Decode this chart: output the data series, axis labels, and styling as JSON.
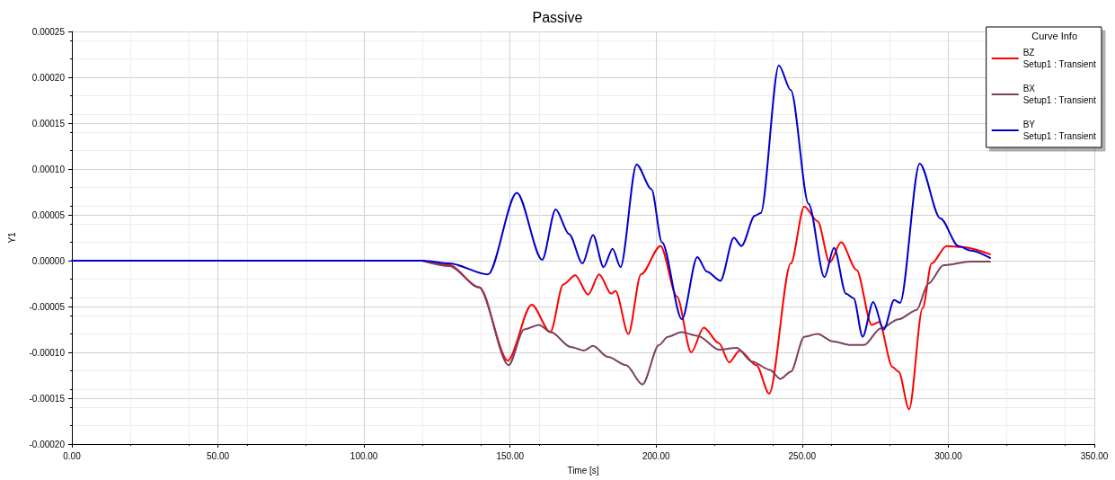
{
  "chart_data": {
    "type": "line",
    "title": "Passive",
    "xlabel": "Time [s]",
    "ylabel": "Y1",
    "legend_title": "Curve Info",
    "legend": "top right",
    "grid": true,
    "marker": "none",
    "line_style": "solid",
    "xlim": [
      0,
      350
    ],
    "xticks": [
      {
        "value": 0,
        "label": "0.00"
      },
      {
        "value": 50,
        "label": "50.00"
      },
      {
        "value": 100,
        "label": "100.00"
      },
      {
        "value": 150,
        "label": "150.00"
      },
      {
        "value": 200,
        "label": "200.00"
      },
      {
        "value": 250,
        "label": "250.00"
      },
      {
        "value": 300,
        "label": "300.00"
      },
      {
        "value": 350,
        "label": "350.00"
      }
    ],
    "ylim": [
      -0.0002,
      0.00025
    ],
    "yticks": [
      {
        "value": -0.0002,
        "label": "-0.00020"
      },
      {
        "value": -0.00015,
        "label": "-0.00015"
      },
      {
        "value": -0.0001,
        "label": "-0.00010"
      },
      {
        "value": -5e-05,
        "label": "-0.00005"
      },
      {
        "value": 0,
        "label": "0.00000"
      },
      {
        "value": 5e-05,
        "label": "0.00005"
      },
      {
        "value": 0.0001,
        "label": "0.00010"
      },
      {
        "value": 0.00015,
        "label": "0.00015"
      },
      {
        "value": 0.0002,
        "label": "0.00020"
      },
      {
        "value": 0.00025,
        "label": "0.00025"
      }
    ],
    "series": [
      {
        "name": "BZ\nSetup1 : Transient",
        "color": "#ff0000",
        "x": [
          120,
          129.2,
          139.4,
          149.2,
          157.4,
          163.8,
          168.2,
          172.3,
          176.7,
          180.5,
          184.6,
          186.1,
          190.5,
          194.8,
          201.5,
          207.1,
          212,
          216.3,
          221.5,
          225,
          228.6,
          234.3,
          238.7,
          246.1,
          250.7,
          255.3,
          259.4,
          263.3,
          268.6,
          273.8,
          276.3,
          280.9,
          283,
          286.6,
          291.2,
          294.3,
          299.4,
          304.5,
          314.3
        ],
        "values": [
          0,
          -5e-06,
          -2.9e-05,
          -0.000109,
          -4.8e-05,
          -7.8e-05,
          -2.6e-05,
          -1.6e-05,
          -3.7e-05,
          -1.5e-05,
          -3.6e-05,
          -3.3e-05,
          -8e-05,
          -1.5e-05,
          1.6e-05,
          -3.9e-05,
          -0.0001,
          -7.3e-05,
          -9e-05,
          -0.000111,
          -9.8e-05,
          -0.000114,
          -0.000145,
          -3e-06,
          5.9e-05,
          4.3e-05,
          -2e-06,
          2e-05,
          -1e-05,
          -7e-05,
          -6.7e-05,
          -0.000116,
          -0.000121,
          -0.000162,
          -5.2e-05,
          -3e-06,
          1.6e-05,
          1.5e-05,
          7e-06
        ]
      },
      {
        "name": "BX\nSetup1 : Transient",
        "color": "#7f4060",
        "x": [
          120,
          129.2,
          139.4,
          149.5,
          154.8,
          159.9,
          164,
          170.7,
          175.3,
          178.4,
          183.5,
          189.7,
          195.3,
          201,
          204,
          208.6,
          214.3,
          221.5,
          227.6,
          232.8,
          238.9,
          242.5,
          246.1,
          250.7,
          255.3,
          260.4,
          266.6,
          271.2,
          276.8,
          283,
          289.1,
          293.2,
          298.4,
          307.6,
          314.3
        ],
        "values": [
          0,
          -6e-06,
          -2.9e-05,
          -0.000114,
          -7.5e-05,
          -7e-05,
          -7.8e-05,
          -9.4e-05,
          -9.8e-05,
          -9.3e-05,
          -0.000105,
          -0.000114,
          -0.000135,
          -9.2e-05,
          -8.3e-05,
          -7.8e-05,
          -8.2e-05,
          -9.7e-05,
          -9.5e-05,
          -0.00011,
          -0.000119,
          -0.000129,
          -0.000121,
          -8.3e-05,
          -8e-05,
          -8.8e-05,
          -9.2e-05,
          -9.2e-05,
          -7.4e-05,
          -6.4e-05,
          -5.4e-05,
          -2.5e-05,
          -5e-06,
          -1e-06,
          -1e-06
        ]
      },
      {
        "name": "BY\nSetup1 : Transient",
        "color": "#0000cc",
        "x": [
          0,
          50,
          100,
          120,
          129.2,
          142.4,
          152.3,
          161,
          165.6,
          170.2,
          174.8,
          178.4,
          182,
          185.1,
          187.8,
          193.3,
          198.4,
          202,
          208.8,
          214.1,
          217.4,
          222,
          226.6,
          229.2,
          233.8,
          235.8,
          242,
          246.1,
          252.2,
          257.6,
          260.9,
          265,
          267.6,
          270.7,
          274.3,
          277.9,
          281.5,
          283.5,
          290.2,
          297.3,
          303.5,
          307.6,
          314.3
        ],
        "values": [
          0,
          0,
          0,
          0,
          -3e-06,
          -1.5e-05,
          7.4e-05,
          1e-06,
          5.6e-05,
          2.9e-05,
          -3e-06,
          2.8e-05,
          -7e-06,
          1.3e-05,
          -7e-06,
          0.000105,
          7.8e-05,
          2e-05,
          -6.4e-05,
          4e-06,
          -1.2e-05,
          -2.2e-05,
          2.5e-05,
          1.6e-05,
          4.9e-05,
          5.2e-05,
          0.000213,
          0.000186,
          6.2e-05,
          -1.8e-05,
          1.4e-05,
          -3.6e-05,
          -4.1e-05,
          -8.3e-05,
          -4.5e-05,
          -7.5e-05,
          -4.3e-05,
          -4.6e-05,
          0.000106,
          4.6e-05,
          1.6e-05,
          1.1e-05,
          3e-06
        ]
      }
    ]
  }
}
